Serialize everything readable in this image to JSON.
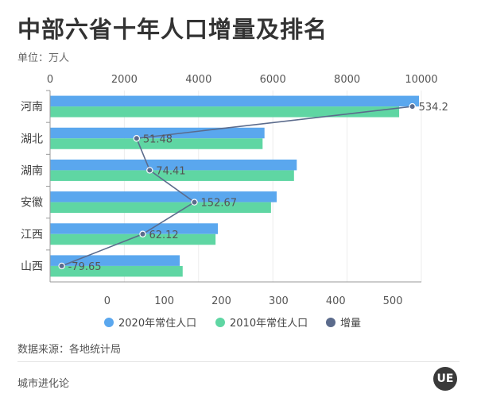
{
  "title": "中部六省十年人口增量及排名",
  "unit_label": "单位：万人",
  "source_label": "数据来源：各地统计局",
  "brand_label": "城市进化论",
  "logo_text": "UE",
  "chart_data": {
    "type": "bar",
    "orientation": "horizontal",
    "categories": [
      "河南",
      "湖北",
      "湖南",
      "安徽",
      "江西",
      "山西"
    ],
    "series": [
      {
        "name": "2020年常住人口",
        "type": "bar",
        "axis": "top",
        "color": "#5aa7ee",
        "values": [
          9937,
          5775,
          6644,
          6103,
          4519,
          3492
        ]
      },
      {
        "name": "2010年常住人口",
        "type": "bar",
        "axis": "top",
        "color": "#5fd6a3",
        "values": [
          9402,
          5724,
          6570,
          5950,
          4457,
          3571
        ]
      },
      {
        "name": "增量",
        "type": "line",
        "axis": "bottom",
        "color": "#5b6b8c",
        "values": [
          534.2,
          51.48,
          74.41,
          152.67,
          62.12,
          -79.65
        ]
      }
    ],
    "data_labels": [
      "534.2",
      "51.48",
      "74.41",
      "152.67",
      "62.12",
      "-79.65"
    ],
    "top_axis": {
      "range": [
        0,
        10000
      ],
      "ticks": [
        "0",
        "2000",
        "4000",
        "6000",
        "8000",
        "10000"
      ]
    },
    "bottom_axis": {
      "range": [
        -100,
        550
      ],
      "ticks": [
        "0",
        "100",
        "200",
        "300",
        "400",
        "500"
      ]
    },
    "legend": {
      "position": "bottom"
    }
  }
}
